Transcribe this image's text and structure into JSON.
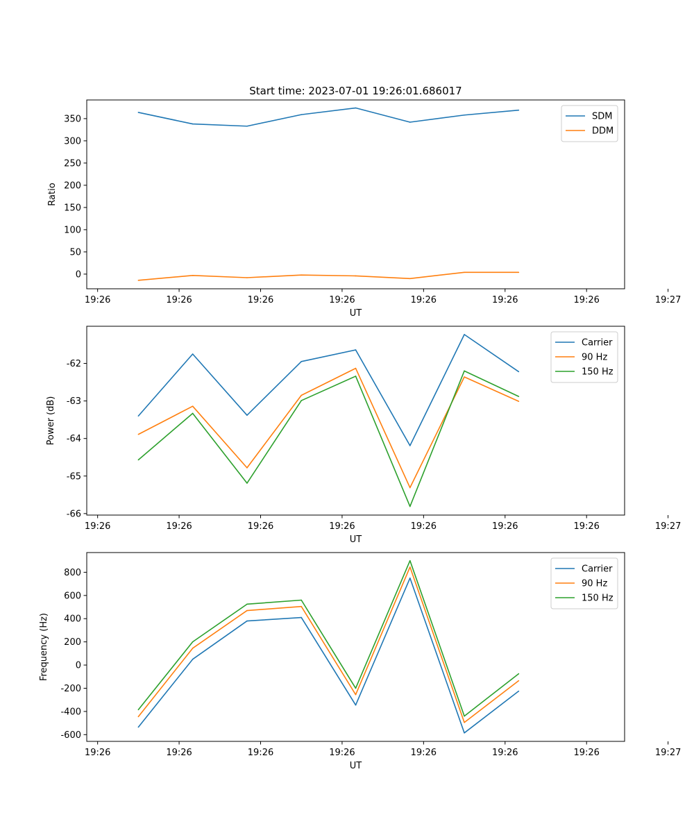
{
  "chart_data": [
    {
      "type": "line",
      "title": "Start time: 2023-07-01 19:26:01.686017",
      "xlabel": "UT",
      "ylabel": "Ratio",
      "x_tick_labels": [
        "19:26",
        "19:26",
        "19:26",
        "19:26",
        "19:26",
        "19:26",
        "19:26",
        "19:27"
      ],
      "xlim": [
        -0.95,
        8.95
      ],
      "x_ticks": [
        -0.75,
        0.75,
        2.25,
        3.75,
        5.25,
        6.75,
        8.25,
        9.75
      ],
      "x": [
        0,
        1,
        2,
        3,
        4,
        5,
        6,
        7
      ],
      "ylim": [
        -33,
        392
      ],
      "y_ticks": [
        0,
        50,
        100,
        150,
        200,
        250,
        300,
        350
      ],
      "legend": "top-right",
      "series": [
        {
          "name": "SDM",
          "color": "#1f77b4",
          "values": [
            364,
            338,
            333,
            359,
            374,
            342,
            358,
            369
          ]
        },
        {
          "name": "DDM",
          "color": "#ff7f0e",
          "values": [
            -14,
            -3,
            -8,
            -2,
            -4,
            -10,
            4,
            4
          ]
        }
      ]
    },
    {
      "type": "line",
      "title": "",
      "xlabel": "UT",
      "ylabel": "Power (dB)",
      "x_tick_labels": [
        "19:26",
        "19:26",
        "19:26",
        "19:26",
        "19:26",
        "19:26",
        "19:26",
        "19:27"
      ],
      "xlim": [
        -0.95,
        8.95
      ],
      "x_ticks": [
        -0.75,
        0.75,
        2.25,
        3.75,
        5.25,
        6.75,
        8.25,
        9.75
      ],
      "x": [
        0,
        1,
        2,
        3,
        4,
        5,
        6,
        7
      ],
      "ylim": [
        -66.04,
        -61.01
      ],
      "y_ticks": [
        -66,
        -65,
        -64,
        -63,
        -62
      ],
      "legend": "top-right",
      "series": [
        {
          "name": "Carrier",
          "color": "#1f77b4",
          "values": [
            -63.4,
            -61.75,
            -63.38,
            -61.95,
            -61.64,
            -64.19,
            -61.23,
            -62.22
          ]
        },
        {
          "name": "90 Hz",
          "color": "#ff7f0e",
          "values": [
            -63.89,
            -63.14,
            -64.78,
            -62.85,
            -62.13,
            -65.31,
            -62.36,
            -63.01
          ]
        },
        {
          "name": "150 Hz",
          "color": "#2ca02c",
          "values": [
            -64.57,
            -63.33,
            -65.19,
            -62.99,
            -62.34,
            -65.81,
            -62.2,
            -62.88
          ]
        }
      ]
    },
    {
      "type": "line",
      "title": "",
      "xlabel": "UT",
      "ylabel": "Frequency (Hz)",
      "x_tick_labels": [
        "19:26",
        "19:26",
        "19:26",
        "19:26",
        "19:26",
        "19:26",
        "19:26",
        "19:27"
      ],
      "xlim": [
        -0.95,
        8.95
      ],
      "x_ticks": [
        -0.75,
        0.75,
        2.25,
        3.75,
        5.25,
        6.75,
        8.25,
        9.75
      ],
      "x": [
        0,
        1,
        2,
        3,
        4,
        5,
        6,
        7
      ],
      "ylim": [
        -658,
        970
      ],
      "y_ticks": [
        -600,
        -400,
        -200,
        0,
        200,
        400,
        600,
        800
      ],
      "legend": "top-right",
      "series": [
        {
          "name": "Carrier",
          "color": "#1f77b4",
          "values": [
            -535,
            50,
            380,
            410,
            -345,
            750,
            -585,
            -225
          ]
        },
        {
          "name": "90 Hz",
          "color": "#ff7f0e",
          "values": [
            -445,
            145,
            470,
            505,
            -255,
            845,
            -495,
            -135
          ]
        },
        {
          "name": "150 Hz",
          "color": "#2ca02c",
          "values": [
            -385,
            200,
            525,
            560,
            -200,
            900,
            -440,
            -75
          ]
        }
      ]
    }
  ]
}
